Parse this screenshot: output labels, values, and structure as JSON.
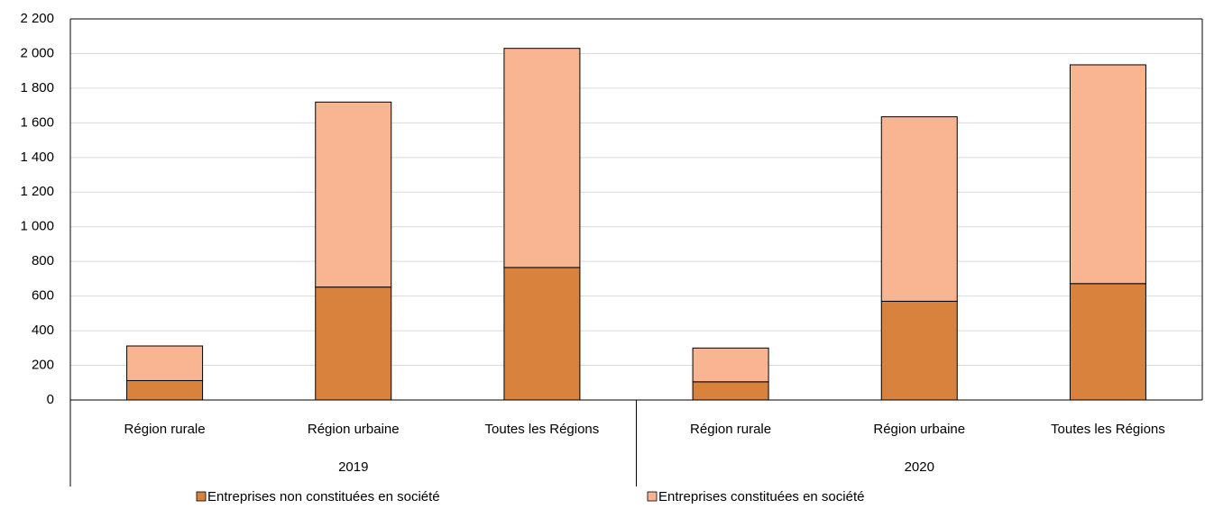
{
  "chart_data": {
    "type": "stacked_bar",
    "groups": [
      {
        "name": "2019",
        "categories": [
          "Région rurale",
          "Région urbaine",
          "Toutes les Régions"
        ]
      },
      {
        "name": "2020",
        "categories": [
          "Région rurale",
          "Région urbaine",
          "Toutes les Régions"
        ]
      }
    ],
    "series": [
      {
        "name": "Entreprises non constituées en société",
        "color": "#d9823e",
        "values": [
          112,
          652,
          765,
          105,
          570,
          672
        ]
      },
      {
        "name": "Entreprises constituées en société",
        "color": "#f9b592",
        "values": [
          200,
          1068,
          1265,
          195,
          1065,
          1263
        ]
      }
    ],
    "ylim": [
      0,
      2200
    ],
    "yticks": [
      0,
      200,
      400,
      600,
      800,
      {
        "value": 1000,
        "label": "1 000"
      },
      {
        "value": 1200,
        "label": "1 200"
      },
      {
        "value": 1400,
        "label": "1 400"
      },
      {
        "value": 1600,
        "label": "1 600"
      },
      {
        "value": 1800,
        "label": "1 800"
      },
      {
        "value": 2000,
        "label": "2 000"
      },
      {
        "value": 2200,
        "label": "2 200"
      }
    ],
    "grid": true,
    "legend": "bottom"
  }
}
